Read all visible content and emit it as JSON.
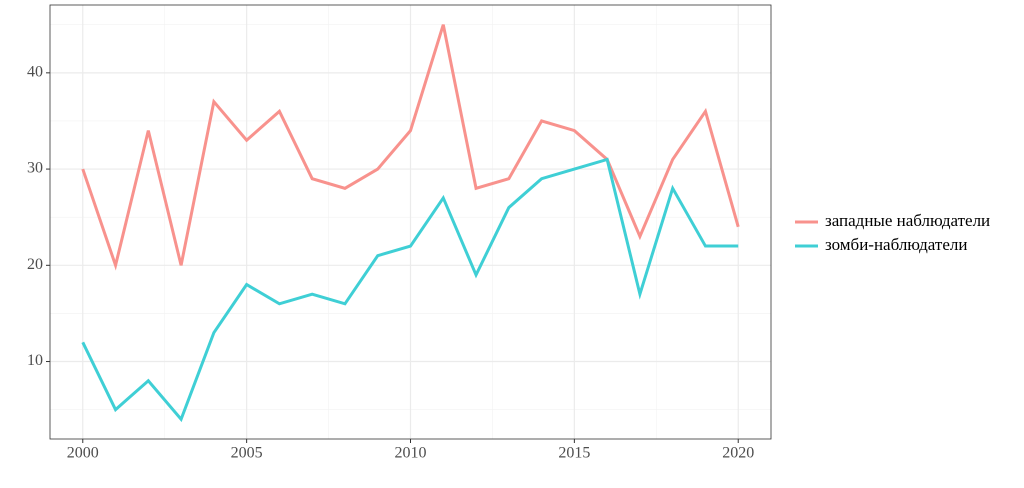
{
  "chart_data": {
    "type": "line",
    "x": [
      2000,
      2001,
      2002,
      2003,
      2004,
      2005,
      2006,
      2007,
      2008,
      2009,
      2010,
      2011,
      2012,
      2013,
      2014,
      2015,
      2016,
      2017,
      2018,
      2019,
      2020
    ],
    "series": [
      {
        "name": "западные наблюдатели",
        "color": "#f8928d",
        "values": [
          30,
          20,
          34,
          20,
          37,
          33,
          36,
          29,
          28,
          30,
          34,
          45,
          28,
          29,
          35,
          34,
          31,
          23,
          31,
          36,
          24
        ]
      },
      {
        "name": "зомби-наблюдатели",
        "color": "#3fcfd5",
        "values": [
          12,
          5,
          8,
          4,
          13,
          18,
          16,
          17,
          16,
          21,
          22,
          27,
          19,
          26,
          29,
          30,
          31,
          17,
          28,
          22,
          22
        ]
      }
    ],
    "xlim": [
      1999,
      2021
    ],
    "xticks": [
      2000,
      2005,
      2010,
      2015,
      2020
    ],
    "ylim": [
      1.95,
      47.05
    ],
    "yticks": [
      10,
      20,
      30,
      40
    ],
    "grid": true,
    "legend": "right"
  }
}
